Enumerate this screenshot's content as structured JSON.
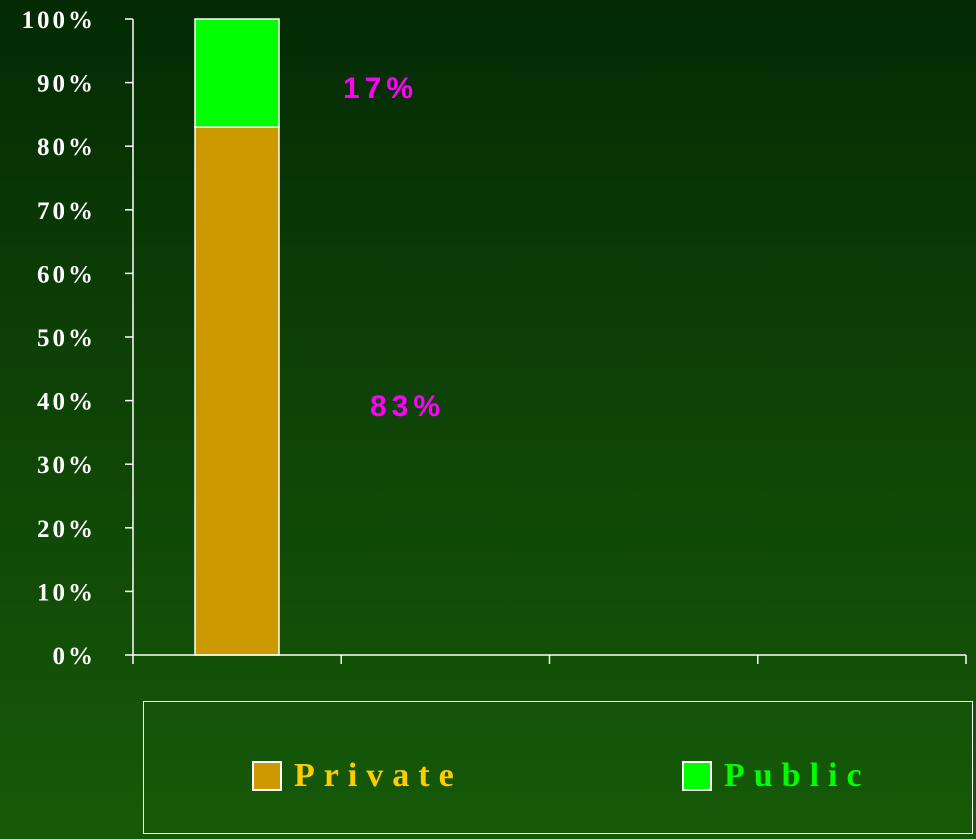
{
  "chart_data": {
    "type": "bar",
    "stacked": true,
    "percent_stacked": true,
    "categories": [
      ""
    ],
    "series": [
      {
        "name": "Private",
        "values": [
          83
        ],
        "color": "#cc9900"
      },
      {
        "name": "Public",
        "values": [
          17
        ],
        "color": "#00ff00"
      }
    ],
    "data_labels": [
      {
        "series": "Public",
        "text": "17%"
      },
      {
        "series": "Private",
        "text": "83%"
      }
    ],
    "ylim": [
      0,
      100
    ],
    "yticks": [
      "0%",
      "10%",
      "20%",
      "30%",
      "40%",
      "50%",
      "60%",
      "70%",
      "80%",
      "90%",
      "100%"
    ],
    "grid": false,
    "legend_position": "bottom",
    "colors": {
      "axis": "#ffffff",
      "tick_label": "#ffffff",
      "data_label": "#ff00ff",
      "bar_outline": "#ffffff"
    },
    "title": "",
    "xlabel": "",
    "ylabel": ""
  },
  "legend": {
    "items": [
      {
        "label": "Private",
        "color": "#cc9900",
        "text_color": "#ffcc00"
      },
      {
        "label": "Public",
        "color": "#00ff00",
        "text_color": "#00ff00"
      }
    ]
  }
}
